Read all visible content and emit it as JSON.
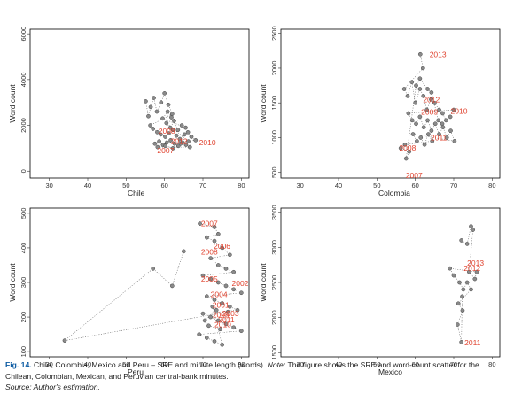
{
  "chart_data": [
    {
      "type": "scatter",
      "xlabel": "Chile",
      "ylabel": "Word count",
      "xlim": [
        25,
        82
      ],
      "ylim": [
        -300,
        6200
      ],
      "xticks": [
        30,
        40,
        50,
        60,
        70,
        80
      ],
      "yticks": [
        0,
        2000,
        4000,
        6000
      ],
      "points": [
        [
          55.1,
          3050
        ],
        [
          55.8,
          2400
        ],
        [
          56.4,
          2800
        ],
        [
          57.2,
          3200
        ],
        [
          58.0,
          2600
        ],
        [
          59.1,
          3000
        ],
        [
          60.0,
          3400
        ],
        [
          61.0,
          2900
        ],
        [
          62.0,
          2500
        ],
        [
          56.3,
          2000
        ],
        [
          57.0,
          1850
        ],
        [
          58.1,
          1700
        ],
        [
          59.0,
          1600
        ],
        [
          60.2,
          1500
        ],
        [
          61.1,
          1650
        ],
        [
          62.2,
          1800
        ],
        [
          63.1,
          1550
        ],
        [
          64.0,
          1400
        ],
        [
          65.2,
          1600
        ],
        [
          66.1,
          1700
        ],
        [
          67.0,
          1500
        ],
        [
          68.1,
          1350
        ],
        [
          57.5,
          1200
        ],
        [
          58.6,
          1300
        ],
        [
          59.6,
          1150
        ],
        [
          60.6,
          1250
        ],
        [
          61.6,
          1350
        ],
        [
          62.6,
          1200
        ],
        [
          63.6,
          1100
        ],
        [
          64.6,
          1250
        ],
        [
          65.6,
          1150
        ],
        [
          66.6,
          1050
        ],
        [
          58.2,
          1050
        ],
        [
          60.2,
          1100
        ],
        [
          62.2,
          1000
        ],
        [
          64.2,
          1200
        ],
        [
          66.2,
          1300
        ],
        [
          60.5,
          2100
        ],
        [
          61.5,
          1900
        ],
        [
          62.5,
          2200
        ],
        [
          63.5,
          1800
        ],
        [
          64.5,
          2000
        ],
        [
          65.5,
          1900
        ],
        [
          59.5,
          2300
        ],
        [
          60.8,
          2600
        ],
        [
          61.8,
          2350
        ]
      ],
      "year_labels": [
        {
          "text": "2008",
          "x": 58.4,
          "y": 1750
        },
        {
          "text": "2012",
          "x": 61.6,
          "y": 1300
        },
        {
          "text": "2010",
          "x": 69.0,
          "y": 1250
        },
        {
          "text": "2007",
          "x": 58.1,
          "y": 900
        }
      ]
    },
    {
      "type": "scatter",
      "xlabel": "Colombia",
      "ylabel": "Word count",
      "xlim": [
        25,
        82
      ],
      "ylim": [
        420,
        2560
      ],
      "xticks": [
        30,
        40,
        50,
        60,
        70,
        80
      ],
      "yticks": [
        500,
        1000,
        1500,
        2000,
        2500
      ],
      "points": [
        [
          61.3,
          2200
        ],
        [
          62.0,
          2000
        ],
        [
          57.1,
          1700
        ],
        [
          58.0,
          1600
        ],
        [
          59.1,
          1800
        ],
        [
          60.0,
          1500
        ],
        [
          61.2,
          1700
        ],
        [
          62.1,
          1600
        ],
        [
          63.0,
          1400
        ],
        [
          64.1,
          1550
        ],
        [
          65.0,
          1500
        ],
        [
          66.2,
          1400
        ],
        [
          67.1,
          1350
        ],
        [
          68.0,
          1250
        ],
        [
          69.1,
          1300
        ],
        [
          70.0,
          1400
        ],
        [
          58.2,
          1350
        ],
        [
          59.2,
          1250
        ],
        [
          60.2,
          1200
        ],
        [
          61.2,
          1300
        ],
        [
          62.2,
          1150
        ],
        [
          63.2,
          1250
        ],
        [
          64.2,
          1100
        ],
        [
          65.2,
          1200
        ],
        [
          66.2,
          1050
        ],
        [
          67.2,
          1150
        ],
        [
          68.2,
          1000
        ],
        [
          69.2,
          1100
        ],
        [
          70.2,
          950
        ],
        [
          59.4,
          1050
        ],
        [
          60.4,
          950
        ],
        [
          61.4,
          1000
        ],
        [
          62.4,
          900
        ],
        [
          63.4,
          1050
        ],
        [
          64.4,
          950
        ],
        [
          57.3,
          900
        ],
        [
          56.2,
          850
        ],
        [
          58.4,
          800
        ],
        [
          57.6,
          700
        ],
        [
          60.2,
          1750
        ],
        [
          61.2,
          1850
        ],
        [
          63.2,
          1700
        ],
        [
          64.2,
          1650
        ],
        [
          66.0,
          1250
        ],
        [
          67.0,
          1200
        ]
      ],
      "year_labels": [
        {
          "text": "2013",
          "x": 63.7,
          "y": 2200
        },
        {
          "text": "2012",
          "x": 62.0,
          "y": 1550
        },
        {
          "text": "2009",
          "x": 61.5,
          "y": 1370
        },
        {
          "text": "2010",
          "x": 69.2,
          "y": 1380
        },
        {
          "text": "2011",
          "x": 64.0,
          "y": 1000
        },
        {
          "text": "2008",
          "x": 55.8,
          "y": 850
        },
        {
          "text": "2007",
          "x": 57.5,
          "y": 460
        }
      ]
    },
    {
      "type": "scatter",
      "xlabel": "Peru",
      "ylabel": "Word count",
      "xlim": [
        25,
        82
      ],
      "ylim": [
        85,
        515
      ],
      "xticks": [
        30,
        40,
        50,
        60,
        70,
        80
      ],
      "yticks": [
        100,
        200,
        300,
        400,
        500
      ],
      "points": [
        [
          69.2,
          470
        ],
        [
          73.0,
          460
        ],
        [
          74.0,
          440
        ],
        [
          71.0,
          430
        ],
        [
          73.0,
          420
        ],
        [
          75.0,
          400
        ],
        [
          77.0,
          380
        ],
        [
          72.0,
          370
        ],
        [
          74.0,
          350
        ],
        [
          76.0,
          340
        ],
        [
          78.0,
          330
        ],
        [
          70.0,
          320
        ],
        [
          72.0,
          310
        ],
        [
          74.0,
          300
        ],
        [
          76.0,
          290
        ],
        [
          78.0,
          280
        ],
        [
          80.0,
          270
        ],
        [
          71.0,
          260
        ],
        [
          73.0,
          250
        ],
        [
          75.0,
          240
        ],
        [
          77.0,
          230
        ],
        [
          79.0,
          220
        ],
        [
          70.0,
          210
        ],
        [
          72.0,
          200
        ],
        [
          74.0,
          190
        ],
        [
          76.0,
          180
        ],
        [
          78.0,
          170
        ],
        [
          80.0,
          160
        ],
        [
          69.0,
          150
        ],
        [
          71.0,
          140
        ],
        [
          73.0,
          130
        ],
        [
          75.0,
          120
        ],
        [
          72.5,
          230
        ],
        [
          73.5,
          220
        ],
        [
          70.5,
          190
        ],
        [
          71.5,
          175
        ],
        [
          74.5,
          165
        ],
        [
          76.5,
          215
        ],
        [
          34.0,
          132
        ],
        [
          57.0,
          340
        ],
        [
          62.0,
          290
        ],
        [
          65.0,
          390
        ]
      ],
      "year_labels": [
        {
          "text": "2007",
          "x": 69.5,
          "y": 470
        },
        {
          "text": "2006",
          "x": 72.8,
          "y": 405
        },
        {
          "text": "2008",
          "x": 69.5,
          "y": 388
        },
        {
          "text": "2005",
          "x": 69.5,
          "y": 310
        },
        {
          "text": "2002",
          "x": 77.5,
          "y": 298
        },
        {
          "text": "2004",
          "x": 72.0,
          "y": 265
        },
        {
          "text": "2001",
          "x": 72.5,
          "y": 235
        },
        {
          "text": "2003",
          "x": 75.0,
          "y": 210
        },
        {
          "text": "2009",
          "x": 72.5,
          "y": 207
        },
        {
          "text": "2011",
          "x": 74.0,
          "y": 193
        },
        {
          "text": "2010",
          "x": 73.0,
          "y": 178
        }
      ]
    },
    {
      "type": "scatter",
      "xlabel": "Mexico",
      "ylabel": "Word count",
      "xlim": [
        25,
        82
      ],
      "ylim": [
        1440,
        3560
      ],
      "xticks": [
        30,
        40,
        50,
        60,
        70,
        80
      ],
      "yticks": [
        1500,
        2000,
        2500,
        3000,
        3500
      ],
      "points": [
        [
          72.0,
          3100
        ],
        [
          73.5,
          3050
        ],
        [
          74.5,
          3300
        ],
        [
          75.0,
          3250
        ],
        [
          74.0,
          2650
        ],
        [
          75.5,
          2550
        ],
        [
          76.0,
          2650
        ],
        [
          69.0,
          2700
        ],
        [
          70.0,
          2600
        ],
        [
          71.5,
          2500
        ],
        [
          72.5,
          2400
        ],
        [
          73.5,
          2500
        ],
        [
          74.5,
          2400
        ],
        [
          71.2,
          2200
        ],
        [
          72.3,
          2100
        ],
        [
          71.0,
          1900
        ],
        [
          72.0,
          1650
        ],
        [
          72.2,
          2300
        ]
      ],
      "year_labels": [
        {
          "text": "2013",
          "x": 73.5,
          "y": 2780
        },
        {
          "text": "2012",
          "x": 72.6,
          "y": 2700
        },
        {
          "text": "2011",
          "x": 72.8,
          "y": 1640
        }
      ]
    }
  ],
  "caption": {
    "fig_label": "Fig. 14.",
    "text": "Chile, Colombia, Mexico and Peru – SRE and minute length (words).",
    "note_label": "Note:",
    "note_text": "The figure shows the SRE and word-count scatter for the Chilean, Colombian, Mexican,  and Peruvian central-bank minutes.",
    "source": "Source: Author's estimation."
  },
  "colors": {
    "point_fill": "#8a8a8a",
    "point_stroke": "#444444",
    "year_label": "#e0432f",
    "axis": "#333333",
    "frame": "#000000",
    "fig_label": "#0b5aa2"
  }
}
